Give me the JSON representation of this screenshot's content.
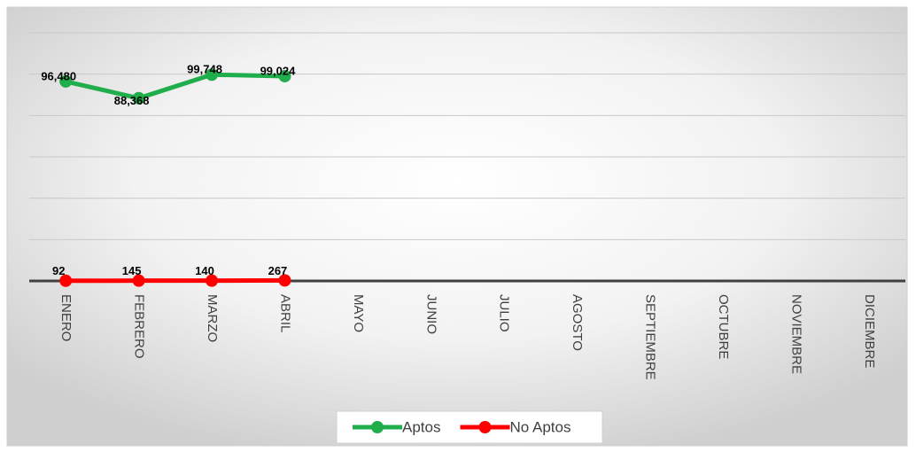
{
  "chart_data": {
    "type": "line",
    "categories": [
      "ENERO",
      "FEBRERO",
      "MARZO",
      "ABRIL",
      "MAYO",
      "JUNIO",
      "JULIO",
      "AGOSTO",
      "SEPTIEMBRE",
      "OCTUBRE",
      "NOVIEMBRE",
      "DICIEMBRE"
    ],
    "series": [
      {
        "name": "Aptos",
        "color": "#1fae4b",
        "values": [
          96480,
          88368,
          99748,
          99024,
          null,
          null,
          null,
          null,
          null,
          null,
          null,
          null
        ],
        "value_labels": [
          "96,480",
          "88,368",
          "99,748",
          "99,024",
          null,
          null,
          null,
          null,
          null,
          null,
          null,
          null
        ]
      },
      {
        "name": "No Aptos",
        "color": "#ff0000",
        "values": [
          92,
          145,
          140,
          267,
          null,
          null,
          null,
          null,
          null,
          null,
          null,
          null
        ]
      }
    ],
    "ylim": [
      0,
      120000
    ],
    "yticks": [
      0,
      20000,
      40000,
      60000,
      80000,
      100000,
      120000
    ],
    "grid": true
  }
}
